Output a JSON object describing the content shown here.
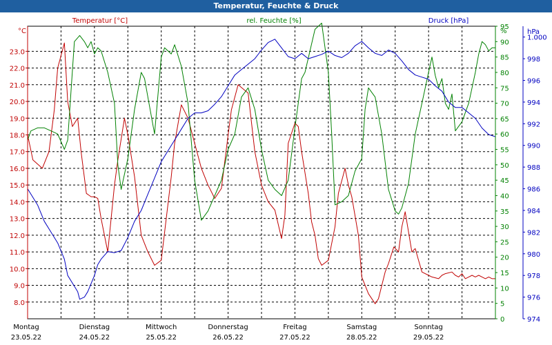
{
  "window": {
    "title": "Temperatur, Feuchte & Druck"
  },
  "chart_data": {
    "type": "line",
    "title": "Temperatur, Feuchte & Druck",
    "x_range": [
      0,
      7
    ],
    "grid": true,
    "day_labels": [
      {
        "day": "Montag",
        "date": "23.05.22",
        "x": 0
      },
      {
        "day": "Dienstag",
        "date": "24.05.22",
        "x": 1
      },
      {
        "day": "Mittwoch",
        "date": "25.05.22",
        "x": 2
      },
      {
        "day": "Donnerstag",
        "date": "26.05.22",
        "x": 3
      },
      {
        "day": "Freitag",
        "date": "27.05.22",
        "x": 4
      },
      {
        "day": "Samstag",
        "date": "28.05.22",
        "x": 5
      },
      {
        "day": "Sonntag",
        "date": "29.05.22",
        "x": 6
      }
    ],
    "axes": {
      "temperature": {
        "title": "Temperatur [°C]",
        "unit": "°C",
        "color": "#c00000",
        "range": [
          7.0,
          24.5
        ],
        "ticks": [
          "8.0",
          "9.0",
          "10.0",
          "11.0",
          "12.0",
          "13.0",
          "14.0",
          "15.0",
          "16.0",
          "17.0",
          "18.0",
          "19.0",
          "20.0",
          "21.0",
          "22.0",
          "23.0"
        ]
      },
      "humidity": {
        "title": "rel. Feuchte [%]",
        "unit": "%",
        "color": "#008000",
        "range": [
          0,
          95
        ],
        "ticks": [
          "0",
          "5",
          "10",
          "15",
          "20",
          "25",
          "30",
          "35",
          "40",
          "45",
          "50",
          "55",
          "60",
          "65",
          "70",
          "75",
          "80",
          "85",
          "90",
          "95"
        ]
      },
      "pressure": {
        "title": "Druck [hPa]",
        "unit": "hPa",
        "color": "#0000c0",
        "range": [
          974,
          1001
        ],
        "ticks": [
          "974",
          "976",
          "978",
          "980",
          "982",
          "984",
          "986",
          "988",
          "990",
          "992",
          "994",
          "996",
          "998",
          "1.000"
        ]
      }
    },
    "series": [
      {
        "name": "Temperatur [°C]",
        "axis": "temperature",
        "color": "#c00000",
        "x": [
          0,
          0.08,
          0.22,
          0.32,
          0.4,
          0.45,
          0.55,
          0.6,
          0.67,
          0.75,
          0.8,
          0.88,
          0.95,
          1,
          1.05,
          1.1,
          1.2,
          1.3,
          1.35,
          1.45,
          1.5,
          1.6,
          1.7,
          1.8,
          1.9,
          2,
          2.15,
          2.2,
          2.3,
          2.4,
          2.5,
          2.6,
          2.7,
          2.8,
          2.9,
          3,
          3.05,
          3.15,
          3.3,
          3.4,
          3.5,
          3.6,
          3.7,
          3.8,
          3.85,
          3.9,
          4,
          4.05,
          4.1,
          4.2,
          4.25,
          4.3,
          4.35,
          4.4,
          4.5,
          4.6,
          4.65,
          4.75,
          4.8,
          4.85,
          4.95,
          5,
          5.1,
          5.2,
          5.25,
          5.35,
          5.4,
          5.48,
          5.55,
          5.6,
          5.65,
          5.75,
          5.8,
          5.85,
          5.9,
          6,
          6.05,
          6.15,
          6.2,
          6.25,
          6.35,
          6.4,
          6.45,
          6.5,
          6.55,
          6.6,
          6.65,
          6.7,
          6.75,
          6.8,
          6.85,
          6.9,
          6.95,
          7
        ],
        "values": [
          18.0,
          16.5,
          16.0,
          17.0,
          19.5,
          22.0,
          23.5,
          20.0,
          18.5,
          19.0,
          17.0,
          14.5,
          14.3,
          14.3,
          14.2,
          13.0,
          11.0,
          15.0,
          16.5,
          19.0,
          18.0,
          15.5,
          12.0,
          11.0,
          10.2,
          10.5,
          15.5,
          17.5,
          19.8,
          19.0,
          17.5,
          16.0,
          15.0,
          14.2,
          14.8,
          18.0,
          19.5,
          21.0,
          20.5,
          17.0,
          15.0,
          14.0,
          13.5,
          11.8,
          13.2,
          17.5,
          18.7,
          18.5,
          17.0,
          14.5,
          12.8,
          12.0,
          10.6,
          10.2,
          10.5,
          12.5,
          14.5,
          16.0,
          15.0,
          14.3,
          12.0,
          9.5,
          8.5,
          7.9,
          8.2,
          9.8,
          10.3,
          11.3,
          11.0,
          12.5,
          13.4,
          11.0,
          11.2,
          10.5,
          9.8,
          9.6,
          9.5,
          9.4,
          9.6,
          9.7,
          9.8,
          9.6,
          9.5,
          9.7,
          9.4,
          9.5,
          9.6,
          9.5,
          9.6,
          9.5,
          9.4,
          9.5,
          9.4,
          9.4
        ]
      },
      {
        "name": "rel. Feuchte [%]",
        "axis": "humidity",
        "color": "#008000",
        "x": [
          0,
          0.05,
          0.15,
          0.25,
          0.35,
          0.45,
          0.55,
          0.6,
          0.7,
          0.78,
          0.85,
          0.9,
          0.95,
          1.0,
          1.05,
          1.1,
          1.2,
          1.3,
          1.35,
          1.4,
          1.5,
          1.6,
          1.7,
          1.75,
          1.8,
          1.9,
          2.0,
          2.05,
          2.15,
          2.2,
          2.3,
          2.4,
          2.5,
          2.6,
          2.7,
          2.8,
          2.9,
          3.0,
          3.1,
          3.2,
          3.3,
          3.4,
          3.5,
          3.6,
          3.7,
          3.8,
          3.9,
          4.0,
          4.1,
          4.15,
          4.3,
          4.4,
          4.5,
          4.55,
          4.6,
          4.7,
          4.8,
          4.9,
          5.0,
          5.05,
          5.1,
          5.2,
          5.3,
          5.4,
          5.5,
          5.55,
          5.6,
          5.7,
          5.8,
          5.9,
          6.0,
          6.05,
          6.1,
          6.15,
          6.2,
          6.25,
          6.3,
          6.35,
          6.4,
          6.5,
          6.6,
          6.65,
          6.7,
          6.75,
          6.8,
          6.85,
          6.9,
          6.95,
          7
        ],
        "values": [
          58,
          61,
          62,
          62,
          61,
          60,
          55,
          58,
          90,
          92,
          90,
          88,
          90,
          86,
          88,
          87,
          80,
          70,
          50,
          42,
          52,
          68,
          80,
          78,
          72,
          60,
          85,
          88,
          86,
          89,
          82,
          70,
          45,
          32,
          35,
          40,
          45,
          55,
          60,
          72,
          75,
          68,
          55,
          45,
          42,
          40,
          45,
          62,
          78,
          80,
          94,
          96,
          80,
          60,
          37,
          38,
          40,
          48,
          52,
          68,
          75,
          72,
          60,
          42,
          35,
          34,
          36,
          44,
          60,
          70,
          80,
          85,
          79,
          75,
          78,
          70,
          68,
          73,
          61,
          64,
          70,
          75,
          80,
          86,
          90,
          89,
          87,
          88,
          88
        ]
      },
      {
        "name": "Druck [hPa]",
        "axis": "pressure",
        "color": "#0000c0",
        "x": [
          0,
          0.05,
          0.15,
          0.25,
          0.35,
          0.45,
          0.55,
          0.6,
          0.7,
          0.75,
          0.78,
          0.85,
          0.9,
          1.0,
          1.05,
          1.1,
          1.2,
          1.3,
          1.4,
          1.5,
          1.6,
          1.7,
          1.8,
          1.9,
          2.0,
          2.1,
          2.2,
          2.3,
          2.4,
          2.5,
          2.6,
          2.7,
          2.8,
          2.9,
          3.0,
          3.1,
          3.2,
          3.3,
          3.4,
          3.5,
          3.6,
          3.7,
          3.8,
          3.9,
          4.0,
          4.1,
          4.2,
          4.3,
          4.4,
          4.5,
          4.6,
          4.7,
          4.8,
          4.9,
          5.0,
          5.1,
          5.2,
          5.3,
          5.4,
          5.5,
          5.6,
          5.7,
          5.8,
          5.9,
          6.0,
          6.1,
          6.2,
          6.3,
          6.4,
          6.5,
          6.6,
          6.7,
          6.8,
          6.9,
          7
        ],
        "values": [
          986.0,
          985.5,
          984.5,
          983.0,
          982.0,
          981.0,
          979.5,
          978.0,
          977.0,
          976.5,
          975.8,
          976.0,
          976.5,
          978.0,
          979.0,
          979.5,
          980.2,
          980.1,
          980.3,
          981.5,
          983.0,
          984.0,
          985.5,
          987.0,
          988.5,
          989.5,
          990.5,
          991.5,
          992.5,
          993.0,
          993.0,
          993.2,
          993.8,
          994.5,
          995.5,
          996.5,
          997.0,
          997.5,
          998.0,
          998.8,
          999.5,
          999.8,
          999.0,
          998.2,
          998.0,
          998.5,
          998.0,
          998.2,
          998.4,
          998.7,
          998.3,
          998.1,
          998.5,
          999.2,
          999.6,
          999.0,
          998.5,
          998.3,
          998.8,
          998.5,
          997.8,
          997.0,
          996.5,
          996.3,
          996.1,
          995.5,
          995.0,
          994.0,
          993.5,
          993.5,
          993.0,
          992.5,
          991.6,
          991.0,
          990.8
        ]
      }
    ]
  }
}
